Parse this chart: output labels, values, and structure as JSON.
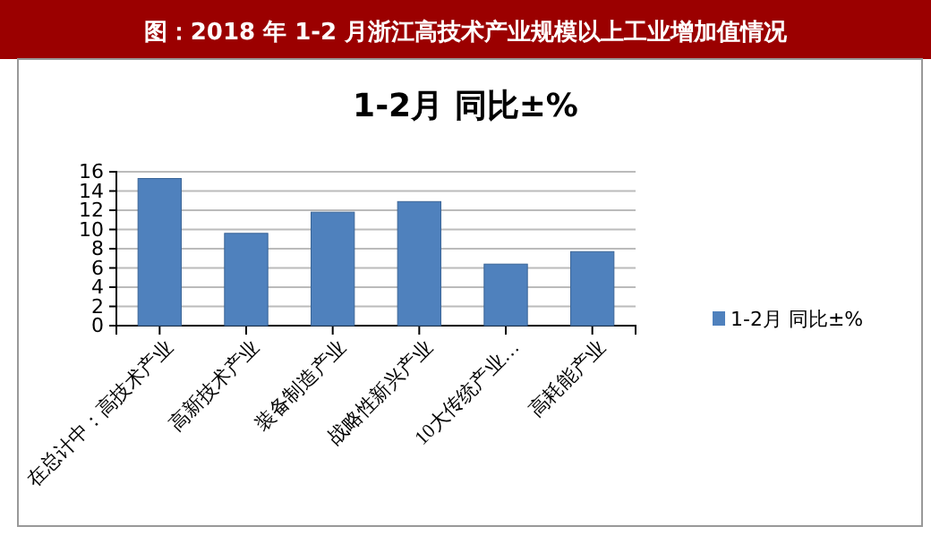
{
  "chart_data": {
    "type": "bar",
    "title": "图：2018 年 1-2 月浙江高技术产业规模以上工业增加值情况",
    "subtitle": "1-2月 同比±%",
    "categories": [
      "在总计中：高技术产业",
      "高新技术产业",
      "装备制造产业",
      "战略性新兴产业",
      "10大传统产业…",
      "高耗能产业"
    ],
    "series": [
      {
        "name": "1-2月 同比±%",
        "color": "#4f81bd",
        "values": [
          15.3,
          9.6,
          11.8,
          12.9,
          6.4,
          7.7
        ]
      }
    ],
    "ylim": [
      0,
      16
    ],
    "yticks": [
      0,
      2,
      4,
      6,
      8,
      10,
      12,
      14,
      16
    ],
    "grid": "y",
    "legend": "right"
  }
}
